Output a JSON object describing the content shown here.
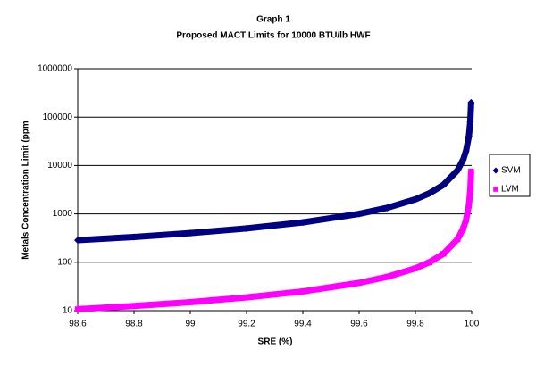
{
  "chart_data": {
    "type": "line",
    "title": "Graph 1",
    "subtitle": "Proposed MACT Limits for 10000 BTU/lb HWF",
    "x_label": "SRE (%)",
    "y_label": "Metals Concentration Limit (ppm",
    "x": [
      98.6,
      98.8,
      99.0,
      99.2,
      99.4,
      99.6,
      99.7,
      99.8,
      99.85,
      99.9,
      99.95,
      99.97,
      99.98,
      99.99,
      99.995,
      99.998
    ],
    "series": [
      {
        "name": "SVM",
        "color": "#000080",
        "marker": "diamond",
        "values": [
          286,
          333,
          400,
          500,
          667,
          1000,
          1333,
          2000,
          2667,
          4000,
          8000,
          13333,
          20000,
          40000,
          80000,
          200000
        ]
      },
      {
        "name": "LVM",
        "color": "#ff00ff",
        "marker": "square",
        "values": [
          10.7,
          12.5,
          15,
          18.8,
          25,
          37.5,
          50,
          75,
          100,
          150,
          300,
          500,
          750,
          1500,
          3000,
          7500
        ]
      }
    ],
    "xlim": [
      98.6,
      100
    ],
    "xticks": [
      98.6,
      98.8,
      99,
      99.2,
      99.4,
      99.6,
      99.8,
      100
    ],
    "ylim": [
      10,
      1000000
    ],
    "yticks": [
      10,
      100,
      1000,
      10000,
      100000,
      1000000
    ],
    "y_scale": "log",
    "grid": true,
    "legend": "right"
  }
}
